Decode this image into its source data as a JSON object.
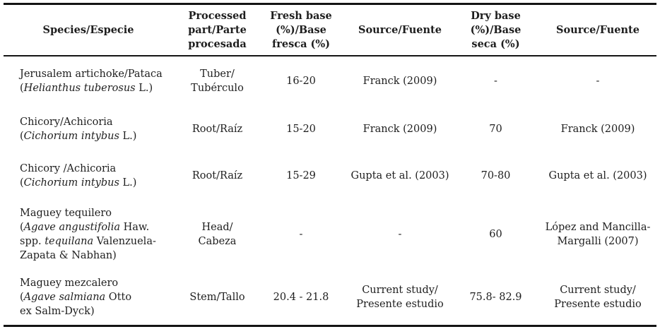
{
  "colors": {
    "text": "#1e1e1e",
    "rule": "#141414",
    "background": "#ffffff"
  },
  "header": {
    "cells": [
      {
        "key": "species",
        "lines": [
          "Species/Especie"
        ]
      },
      {
        "key": "processed-part",
        "lines": [
          "Processed",
          "part/Parte",
          "procesada"
        ]
      },
      {
        "key": "fresh-base",
        "lines": [
          "Fresh base",
          "(%)/Base",
          "fresca (%)"
        ]
      },
      {
        "key": "source-fresh",
        "lines": [
          "Source/Fuente"
        ]
      },
      {
        "key": "dry-base",
        "lines": [
          "Dry base",
          "(%)/Base",
          "seca (%)"
        ]
      },
      {
        "key": "source-dry",
        "lines": [
          "Source/Fuente"
        ]
      }
    ]
  },
  "rows": [
    {
      "species_lines": [
        [
          {
            "t": "Jerusalem artichoke/Pataca",
            "i": false
          }
        ],
        [
          {
            "t": "(",
            "i": false
          },
          {
            "t": "Helianthus tuberosus",
            "i": true
          },
          {
            "t": " L.)",
            "i": false
          }
        ]
      ],
      "part_lines": [
        "Tuber/",
        "Tubérculo"
      ],
      "fresh_base": "16-20",
      "fresh_source_lines": [
        "Franck (2009)"
      ],
      "dry_base": "-",
      "dry_source_lines": [
        "-"
      ]
    },
    {
      "species_lines": [
        [
          {
            "t": "Chicory/Achicoria",
            "i": false
          }
        ],
        [
          {
            "t": "(",
            "i": false
          },
          {
            "t": "Cichorium intybus",
            "i": true
          },
          {
            "t": " L.)",
            "i": false
          }
        ]
      ],
      "part_lines": [
        "Root/Raíz"
      ],
      "fresh_base": "15-20",
      "fresh_source_lines": [
        "Franck (2009)"
      ],
      "dry_base": "70",
      "dry_source_lines": [
        "Franck (2009)"
      ]
    },
    {
      "species_lines": [
        [
          {
            "t": "Chicory /Achicoria",
            "i": false
          }
        ],
        [
          {
            "t": "(",
            "i": false
          },
          {
            "t": "Cichorium intybus",
            "i": true
          },
          {
            "t": " L.)",
            "i": false
          }
        ]
      ],
      "part_lines": [
        "Root/Raíz"
      ],
      "fresh_base": "15-29",
      "fresh_source_lines": [
        "Gupta et al. (2003)"
      ],
      "dry_base": "70-80",
      "dry_source_lines": [
        "Gupta et al. (2003)"
      ]
    },
    {
      "species_lines": [
        [
          {
            "t": "Maguey tequilero",
            "i": false
          }
        ],
        [
          {
            "t": "(",
            "i": false
          },
          {
            "t": "Agave angustifolia",
            "i": true
          },
          {
            "t": " Haw.",
            "i": false
          }
        ],
        [
          {
            "t": "spp. ",
            "i": false
          },
          {
            "t": "tequilana",
            "i": true
          },
          {
            "t": " Valenzuela-",
            "i": false
          }
        ],
        [
          {
            "t": "Zapata & Nabhan)",
            "i": false
          }
        ]
      ],
      "part_lines": [
        "Head/",
        "Cabeza"
      ],
      "fresh_base": "-",
      "fresh_source_lines": [
        "-"
      ],
      "dry_base": "60",
      "dry_source_lines": [
        "López and Mancilla-",
        "Margalli (2007)"
      ]
    },
    {
      "species_lines": [
        [
          {
            "t": "Maguey mezcalero",
            "i": false
          }
        ],
        [
          {
            "t": "(",
            "i": false
          },
          {
            "t": "Agave salmiana",
            "i": true
          },
          {
            "t": " Otto",
            "i": false
          }
        ],
        [
          {
            "t": "ex Salm-Dyck)",
            "i": false
          }
        ]
      ],
      "part_lines": [
        "Stem/Tallo"
      ],
      "fresh_base": "20.4 - 21.8",
      "fresh_source_lines": [
        "Current study/",
        "Presente estudio"
      ],
      "dry_base": "75.8- 82.9",
      "dry_source_lines": [
        "Current study/",
        "Presente estudio"
      ]
    }
  ]
}
